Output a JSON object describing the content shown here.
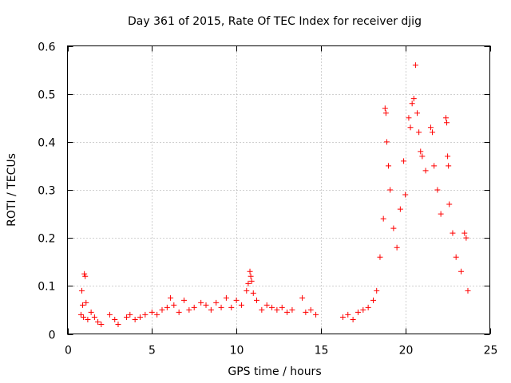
{
  "chart_data": {
    "type": "scatter",
    "title": "Day 361 of 2015, Rate Of TEC Index for receiver djig",
    "xlabel": "GPS time / hours",
    "ylabel": "ROTI / TECUs",
    "xlim": [
      0,
      25
    ],
    "ylim": [
      0,
      0.6
    ],
    "xticks": [
      0,
      5,
      10,
      15,
      20,
      25
    ],
    "yticks": [
      0,
      0.1,
      0.2,
      0.3,
      0.4,
      0.5,
      0.6
    ],
    "grid": true,
    "marker": "+",
    "color": "#ff0000",
    "series": [
      {
        "name": "ROTI",
        "points": [
          [
            0.85,
            0.09
          ],
          [
            0.9,
            0.06
          ],
          [
            0.95,
            0.035
          ],
          [
            1.0,
            0.125
          ],
          [
            1.05,
            0.12
          ],
          [
            1.1,
            0.065
          ],
          [
            0.8,
            0.04
          ],
          [
            1.2,
            0.03
          ],
          [
            1.4,
            0.045
          ],
          [
            1.6,
            0.035
          ],
          [
            1.8,
            0.025
          ],
          [
            2.0,
            0.02
          ],
          [
            2.5,
            0.04
          ],
          [
            2.8,
            0.03
          ],
          [
            3.0,
            0.02
          ],
          [
            3.5,
            0.035
          ],
          [
            3.7,
            0.04
          ],
          [
            4.0,
            0.03
          ],
          [
            4.3,
            0.035
          ],
          [
            4.6,
            0.04
          ],
          [
            5.0,
            0.045
          ],
          [
            5.3,
            0.04
          ],
          [
            5.6,
            0.05
          ],
          [
            5.9,
            0.055
          ],
          [
            6.1,
            0.075
          ],
          [
            6.3,
            0.06
          ],
          [
            6.6,
            0.045
          ],
          [
            6.9,
            0.07
          ],
          [
            7.2,
            0.05
          ],
          [
            7.5,
            0.055
          ],
          [
            7.9,
            0.065
          ],
          [
            8.2,
            0.06
          ],
          [
            8.5,
            0.05
          ],
          [
            8.8,
            0.065
          ],
          [
            9.1,
            0.055
          ],
          [
            9.4,
            0.075
          ],
          [
            9.7,
            0.055
          ],
          [
            10.0,
            0.07
          ],
          [
            10.3,
            0.06
          ],
          [
            10.6,
            0.09
          ],
          [
            10.7,
            0.105
          ],
          [
            10.8,
            0.13
          ],
          [
            10.85,
            0.12
          ],
          [
            10.9,
            0.11
          ],
          [
            11.0,
            0.085
          ],
          [
            11.2,
            0.07
          ],
          [
            11.5,
            0.05
          ],
          [
            11.8,
            0.06
          ],
          [
            12.1,
            0.055
          ],
          [
            12.4,
            0.05
          ],
          [
            12.7,
            0.055
          ],
          [
            13.0,
            0.045
          ],
          [
            13.3,
            0.05
          ],
          [
            13.9,
            0.075
          ],
          [
            14.1,
            0.045
          ],
          [
            14.4,
            0.05
          ],
          [
            14.7,
            0.04
          ],
          [
            16.3,
            0.035
          ],
          [
            16.6,
            0.04
          ],
          [
            16.9,
            0.03
          ],
          [
            17.2,
            0.045
          ],
          [
            17.5,
            0.05
          ],
          [
            17.8,
            0.055
          ],
          [
            18.1,
            0.07
          ],
          [
            18.3,
            0.09
          ],
          [
            18.5,
            0.16
          ],
          [
            18.7,
            0.24
          ],
          [
            18.8,
            0.47
          ],
          [
            18.85,
            0.46
          ],
          [
            18.9,
            0.4
          ],
          [
            19.0,
            0.35
          ],
          [
            19.1,
            0.3
          ],
          [
            19.3,
            0.22
          ],
          [
            19.5,
            0.18
          ],
          [
            19.7,
            0.26
          ],
          [
            19.9,
            0.36
          ],
          [
            20.0,
            0.29
          ],
          [
            20.2,
            0.45
          ],
          [
            20.3,
            0.43
          ],
          [
            20.4,
            0.48
          ],
          [
            20.5,
            0.49
          ],
          [
            20.6,
            0.56
          ],
          [
            20.7,
            0.46
          ],
          [
            20.8,
            0.42
          ],
          [
            20.9,
            0.38
          ],
          [
            21.0,
            0.37
          ],
          [
            21.2,
            0.34
          ],
          [
            21.5,
            0.43
          ],
          [
            21.6,
            0.42
          ],
          [
            21.7,
            0.35
          ],
          [
            21.9,
            0.3
          ],
          [
            22.1,
            0.25
          ],
          [
            22.4,
            0.45
          ],
          [
            22.45,
            0.44
          ],
          [
            22.5,
            0.37
          ],
          [
            22.55,
            0.35
          ],
          [
            22.6,
            0.27
          ],
          [
            22.8,
            0.21
          ],
          [
            23.0,
            0.16
          ],
          [
            23.3,
            0.13
          ],
          [
            23.5,
            0.21
          ],
          [
            23.6,
            0.2
          ],
          [
            23.7,
            0.09
          ]
        ]
      }
    ]
  }
}
